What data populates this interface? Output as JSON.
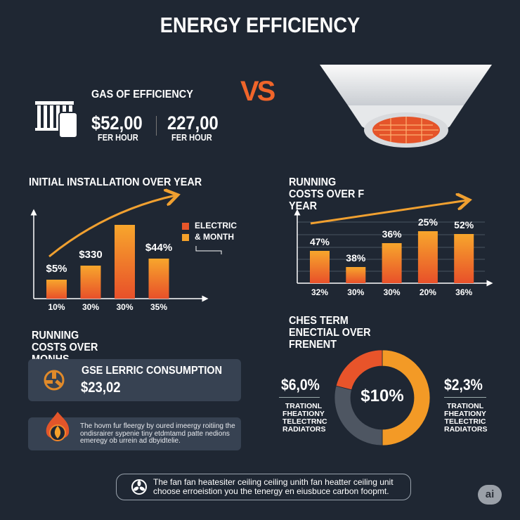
{
  "title": "ENERGY EFFICIENCY",
  "vs": "VS",
  "gas": {
    "heading": "GAS OF EFFICIENCY",
    "value1": "$52,00",
    "unit1": "FER HOUR",
    "value2": "227,00",
    "unit2": "FER HOUR",
    "icon": "radiator-icon"
  },
  "heater_image": "ceiling-fan-heater",
  "chart_data": [
    {
      "type": "bar",
      "title": "INITIAL INSTALLATION OVER YEAR",
      "categories": [
        "10%",
        "30%",
        "30%",
        "35%"
      ],
      "values": [
        27,
        47,
        105,
        57
      ],
      "data_labels": [
        "$5%",
        "$330",
        "",
        "$44%"
      ],
      "legend": [
        {
          "label": "ELECTRIC",
          "color": "#e8562a"
        },
        {
          "label": "& MONTH",
          "color": "#f5a12a"
        }
      ],
      "legend_position": "right",
      "trend_arrow": true,
      "grid": false
    },
    {
      "type": "bar",
      "title": "RUNNING COSTS OVER F YEAR",
      "categories": [
        "32%",
        "30%",
        "30%",
        "20%",
        "36%"
      ],
      "values": [
        46,
        23,
        57,
        74,
        70
      ],
      "data_labels": [
        "47%",
        "38%",
        "36%",
        "25%",
        "52%"
      ],
      "trend_arrow": true,
      "grid": true
    },
    {
      "type": "pie",
      "title": "CHES TERM ENECTIAL OVER FRENENT",
      "center_label": "$10%",
      "slices": [
        {
          "value": 50,
          "color": "#f39a26"
        },
        {
          "value": 29,
          "color": "#4e5662"
        },
        {
          "value": 21,
          "color": "#e8542a"
        }
      ],
      "left": {
        "value": "$6,0%",
        "label": "TRATIONL FHEATIONY TELECTRNC RADIATORS"
      },
      "right": {
        "value": "$2,3%",
        "label": "TRATIONL FHEATIONY TELECTRIC RADIATORS"
      }
    }
  ],
  "running": {
    "heading": "RUNNING COSTS OVER MONHS",
    "card_title": "GSE LERRIC CONSUMPTION",
    "card_value": "$23,02",
    "note": "The hovm fur fleergy by oured imeergy roitiing the ondisrairer sypenie tiny etdmtamd patte nedions emeregy ob urrein ad dbyidtelie."
  },
  "footer": {
    "text": "The fan fan heatesiter ceiling ceiling unith fan heatter ceiling unit choose erroeistion you the tenergy en eiusbuce carbon foopmt.",
    "badge": "ai"
  },
  "colors": {
    "background": "#1f2733",
    "accent": "#f0862a",
    "red": "#e8542a",
    "card": "#374252"
  }
}
